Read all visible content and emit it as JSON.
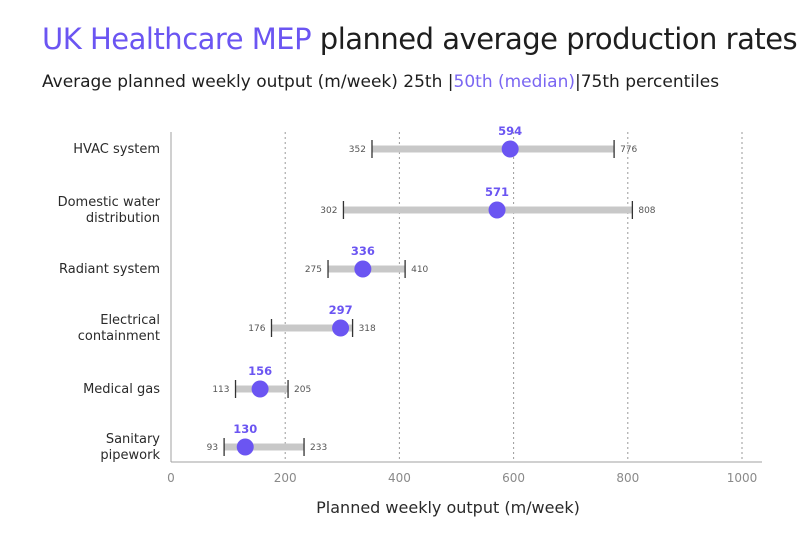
{
  "title": {
    "accent": "UK Healthcare MEP",
    "rest": " planned average production rates"
  },
  "subtitle": {
    "main": "Average planned weekly output (m/week)  25th",
    "sep1": "|",
    "median": "50th (median)",
    "sep2": "|",
    "end": "75th percentiles"
  },
  "colors": {
    "accent": "#6b55f2",
    "range_bar": "#c8c8c8",
    "grid": "#9a9a9a"
  },
  "chart_data": {
    "type": "dot-range",
    "xlabel": "Planned weekly output (m/week)",
    "xlim": [
      0,
      1000
    ],
    "xticks": [
      0,
      200,
      400,
      600,
      800,
      1000
    ],
    "grid": "vertical-dotted",
    "categories": [
      {
        "label": [
          "HVAC system"
        ],
        "p25": 352,
        "median": 594,
        "p75": 776
      },
      {
        "label": [
          "Domestic water",
          "distribution"
        ],
        "p25": 302,
        "median": 571,
        "p75": 808
      },
      {
        "label": [
          "Radiant system"
        ],
        "p25": 275,
        "median": 336,
        "p75": 410
      },
      {
        "label": [
          "Electrical",
          "containment"
        ],
        "p25": 176,
        "median": 297,
        "p75": 318
      },
      {
        "label": [
          "Medical gas"
        ],
        "p25": 113,
        "median": 156,
        "p75": 205
      },
      {
        "label": [
          "Sanitary",
          "pipework"
        ],
        "p25": 93,
        "median": 130,
        "p75": 233
      }
    ]
  }
}
